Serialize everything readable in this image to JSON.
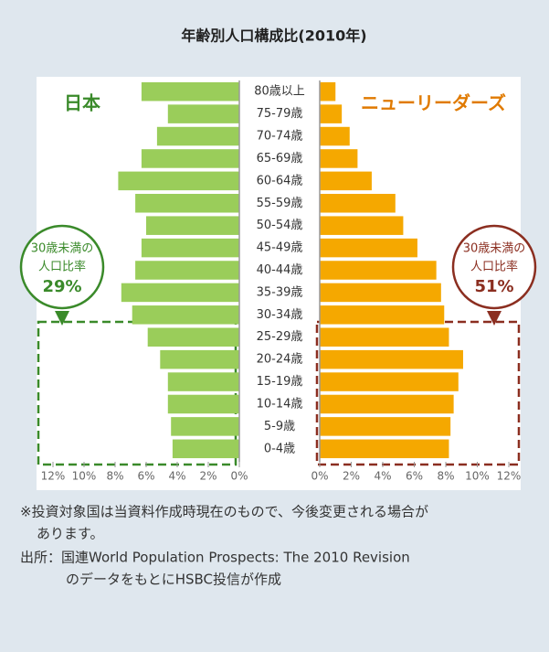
{
  "chart_data": {
    "type": "pyramid",
    "title": "年齢別人口構成比(2010年)",
    "categories": [
      "80歳以上",
      "75-79歳",
      "70-74歳",
      "65-69歳",
      "60-64歳",
      "55-59歳",
      "50-54歳",
      "45-49歳",
      "40-44歳",
      "35-39歳",
      "30-34歳",
      "25-29歳",
      "20-24歳",
      "15-19歳",
      "10-14歳",
      "5-9歳",
      "0-4歳"
    ],
    "series": [
      {
        "name": "日本",
        "color": "#9acd5a",
        "values": [
          6.3,
          4.6,
          5.3,
          6.3,
          7.8,
          6.7,
          6.0,
          6.3,
          6.7,
          7.6,
          6.9,
          5.9,
          5.1,
          4.6,
          4.6,
          4.4,
          4.3
        ],
        "xlim": [
          12,
          0
        ],
        "xticks": [
          {
            "value": 12,
            "label": "12%"
          },
          {
            "value": 10,
            "label": "10%"
          },
          {
            "value": 8,
            "label": "8%"
          },
          {
            "value": 6,
            "label": "6%"
          },
          {
            "value": 4,
            "label": "4%"
          },
          {
            "value": 2,
            "label": "2%"
          },
          {
            "value": 0,
            "label": "0%"
          }
        ]
      },
      {
        "name": "ニューリーダーズ",
        "color": "#f5a800",
        "values": [
          1.0,
          1.4,
          1.9,
          2.4,
          3.3,
          4.8,
          5.3,
          6.2,
          7.4,
          7.7,
          7.9,
          8.2,
          9.1,
          8.8,
          8.5,
          8.3,
          8.2
        ],
        "xlim": [
          0,
          12
        ],
        "xticks": [
          {
            "value": 0,
            "label": "0%"
          },
          {
            "value": 2,
            "label": "2%"
          },
          {
            "value": 4,
            "label": "4%"
          },
          {
            "value": 6,
            "label": "6%"
          },
          {
            "value": 8,
            "label": "8%"
          },
          {
            "value": 10,
            "label": "10%"
          },
          {
            "value": 12,
            "label": "12%"
          }
        ]
      }
    ],
    "annotations": [
      {
        "lines": [
          "30歳未満の",
          "人口比率"
        ],
        "value_label": "29%"
      },
      {
        "lines": [
          "30歳未満の",
          "人口比率"
        ],
        "value_label": "51%"
      }
    ],
    "notes": [
      "※投資対象国は当資料作成時現在のもので、今後変更される場合が",
      "あります。",
      "出所：国連World Population Prospects: The 2010 Revision",
      "のデータをもとにHSBC投信が作成"
    ]
  }
}
